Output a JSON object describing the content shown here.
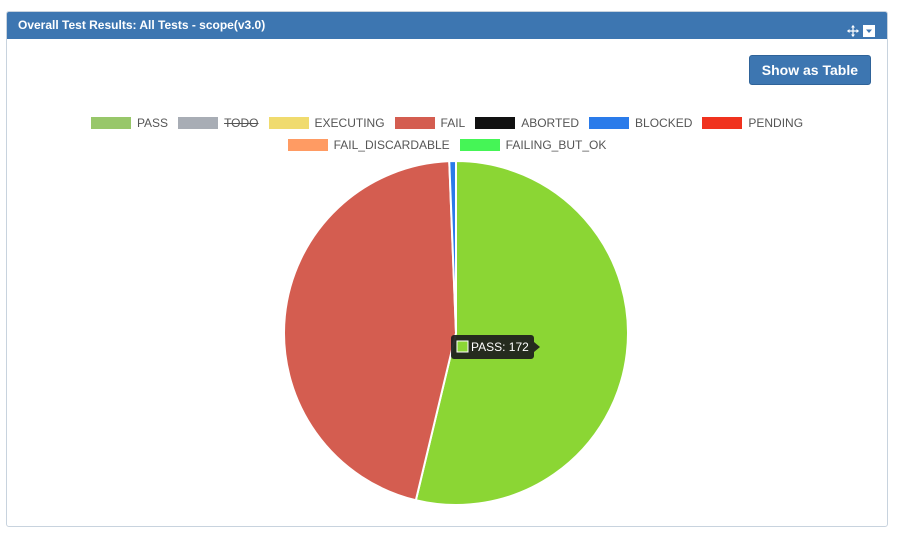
{
  "panel": {
    "title": "Overall Test Results: All Tests - scope(v3.0)",
    "show_table_label": "Show as Table"
  },
  "header_icons": [
    "move-icon",
    "collapse-icon"
  ],
  "colors": {
    "header_bg": "#3d76b1",
    "button_bg": "#3d76b1"
  },
  "chart_data": {
    "type": "pie",
    "series": [
      {
        "name": "PASS",
        "value": 172,
        "color": "#8bd634",
        "legend_color": "#98c76a",
        "hidden": false
      },
      {
        "name": "TODO",
        "value": 0,
        "color": "#a8adb5",
        "legend_color": "#a8adb5",
        "hidden": true
      },
      {
        "name": "EXECUTING",
        "value": 0,
        "color": "#f0db6e",
        "legend_color": "#f0db6e",
        "hidden": false
      },
      {
        "name": "FAIL",
        "value": 146,
        "color": "#d45d50",
        "legend_color": "#d45d50",
        "hidden": false
      },
      {
        "name": "ABORTED",
        "value": 0,
        "color": "#111111",
        "legend_color": "#111111",
        "hidden": false
      },
      {
        "name": "BLOCKED",
        "value": 2,
        "color": "#2a7bea",
        "legend_color": "#2a7bea",
        "hidden": false
      },
      {
        "name": "PENDING",
        "value": 0,
        "color": "#f0321e",
        "legend_color": "#f0321e",
        "hidden": false
      },
      {
        "name": "FAIL_DISCARDABLE",
        "value": 0,
        "color": "#ff9b63",
        "legend_color": "#ff9b63",
        "hidden": false
      },
      {
        "name": "FAILING_BUT_OK",
        "value": 0,
        "color": "#45f556",
        "legend_color": "#45f556",
        "hidden": false
      }
    ],
    "legend_placement": "top",
    "tooltip": {
      "label": "PASS: 172",
      "series": "PASS"
    }
  }
}
